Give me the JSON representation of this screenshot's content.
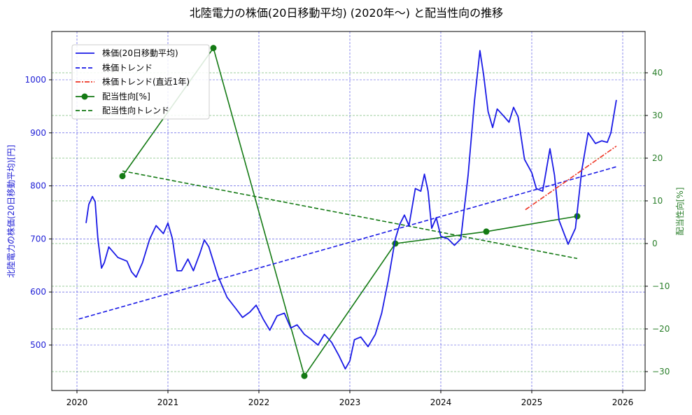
{
  "chart_data": {
    "type": "line",
    "title": "北陸電力の株価(20日移動平均) (2020年〜) と配当性向の推移",
    "xlabel": "",
    "ylabel_left": "北陸電力の株価(20日移動平均)[円]",
    "ylabel_right": "配当性向[%]",
    "x_ticks": [
      "2020",
      "2021",
      "2022",
      "2023",
      "2024",
      "2025",
      "2026"
    ],
    "y_left_ticks": [
      "500",
      "600",
      "700",
      "800",
      "900",
      "1000"
    ],
    "y_right_ticks": [
      "−30",
      "−20",
      "−10",
      "0",
      "10",
      "20",
      "30",
      "40"
    ],
    "xlim": [
      2019.7,
      2026.25
    ],
    "ylim_left": [
      415,
      1075
    ],
    "ylim_right": [
      -35,
      48
    ],
    "grid": true,
    "legend_position": "upper left",
    "legend": [
      "株価(20日移動平均)",
      "株価トレンド",
      "株価トレンド(直近1年)",
      "配当性向[%]",
      "配当性向トレンド"
    ],
    "series": [
      {
        "name": "株価(20日移動平均)",
        "axis": "left",
        "color": "#1a1ae6",
        "style": "solid",
        "points": [
          [
            2020.1,
            730
          ],
          [
            2020.13,
            765
          ],
          [
            2020.17,
            780
          ],
          [
            2020.2,
            770
          ],
          [
            2020.23,
            700
          ],
          [
            2020.27,
            645
          ],
          [
            2020.3,
            655
          ],
          [
            2020.35,
            685
          ],
          [
            2020.45,
            665
          ],
          [
            2020.55,
            658
          ],
          [
            2020.6,
            638
          ],
          [
            2020.65,
            628
          ],
          [
            2020.72,
            655
          ],
          [
            2020.8,
            700
          ],
          [
            2020.87,
            725
          ],
          [
            2020.95,
            710
          ],
          [
            2021.0,
            730
          ],
          [
            2021.05,
            700
          ],
          [
            2021.1,
            640
          ],
          [
            2021.15,
            640
          ],
          [
            2021.22,
            662
          ],
          [
            2021.28,
            640
          ],
          [
            2021.35,
            672
          ],
          [
            2021.4,
            698
          ],
          [
            2021.45,
            685
          ],
          [
            2021.55,
            630
          ],
          [
            2021.65,
            590
          ],
          [
            2021.75,
            568
          ],
          [
            2021.82,
            552
          ],
          [
            2021.9,
            562
          ],
          [
            2021.97,
            575
          ],
          [
            2022.05,
            548
          ],
          [
            2022.12,
            528
          ],
          [
            2022.2,
            555
          ],
          [
            2022.28,
            560
          ],
          [
            2022.35,
            532
          ],
          [
            2022.42,
            538
          ],
          [
            2022.5,
            520
          ],
          [
            2022.58,
            510
          ],
          [
            2022.65,
            500
          ],
          [
            2022.72,
            520
          ],
          [
            2022.8,
            505
          ],
          [
            2022.88,
            480
          ],
          [
            2022.95,
            455
          ],
          [
            2023.0,
            470
          ],
          [
            2023.05,
            510
          ],
          [
            2023.12,
            515
          ],
          [
            2023.2,
            497
          ],
          [
            2023.28,
            520
          ],
          [
            2023.35,
            560
          ],
          [
            2023.42,
            620
          ],
          [
            2023.5,
            700
          ],
          [
            2023.55,
            728
          ],
          [
            2023.6,
            745
          ],
          [
            2023.65,
            725
          ],
          [
            2023.72,
            795
          ],
          [
            2023.78,
            790
          ],
          [
            2023.82,
            822
          ],
          [
            2023.86,
            790
          ],
          [
            2023.9,
            720
          ],
          [
            2023.95,
            740
          ],
          [
            2024.0,
            705
          ],
          [
            2024.08,
            700
          ],
          [
            2024.15,
            688
          ],
          [
            2024.22,
            700
          ],
          [
            2024.3,
            820
          ],
          [
            2024.37,
            960
          ],
          [
            2024.43,
            1055
          ],
          [
            2024.47,
            1010
          ],
          [
            2024.52,
            940
          ],
          [
            2024.57,
            910
          ],
          [
            2024.62,
            945
          ],
          [
            2024.7,
            930
          ],
          [
            2024.75,
            920
          ],
          [
            2024.8,
            948
          ],
          [
            2024.85,
            930
          ],
          [
            2024.92,
            850
          ],
          [
            2025.0,
            825
          ],
          [
            2025.05,
            795
          ],
          [
            2025.12,
            790
          ],
          [
            2025.2,
            870
          ],
          [
            2025.25,
            820
          ],
          [
            2025.3,
            735
          ],
          [
            2025.4,
            690
          ],
          [
            2025.48,
            720
          ],
          [
            2025.55,
            830
          ],
          [
            2025.62,
            900
          ],
          [
            2025.7,
            880
          ],
          [
            2025.77,
            885
          ],
          [
            2025.83,
            882
          ],
          [
            2025.87,
            900
          ],
          [
            2025.93,
            962
          ]
        ]
      },
      {
        "name": "株価トレンド",
        "axis": "left",
        "color": "#1a1ae6",
        "style": "dashed",
        "points": [
          [
            2020.02,
            549
          ],
          [
            2025.93,
            836
          ]
        ]
      },
      {
        "name": "株価トレンド(直近1年)",
        "axis": "left",
        "color": "#ee3322",
        "style": "dashdot",
        "points": [
          [
            2024.93,
            755
          ],
          [
            2025.93,
            875
          ]
        ]
      },
      {
        "name": "配当性向[%]",
        "axis": "right",
        "color": "#147a14",
        "style": "solid-marker",
        "points": [
          [
            2020.5,
            15.8
          ],
          [
            2021.5,
            45.8
          ],
          [
            2022.5,
            -31.0
          ],
          [
            2023.5,
            0.0
          ],
          [
            2024.5,
            2.8
          ],
          [
            2025.5,
            6.4
          ]
        ]
      },
      {
        "name": "配当性向トレンド",
        "axis": "right",
        "color": "#147a14",
        "style": "dashed",
        "points": [
          [
            2020.5,
            17.0
          ],
          [
            2025.5,
            -3.5
          ]
        ]
      }
    ]
  }
}
